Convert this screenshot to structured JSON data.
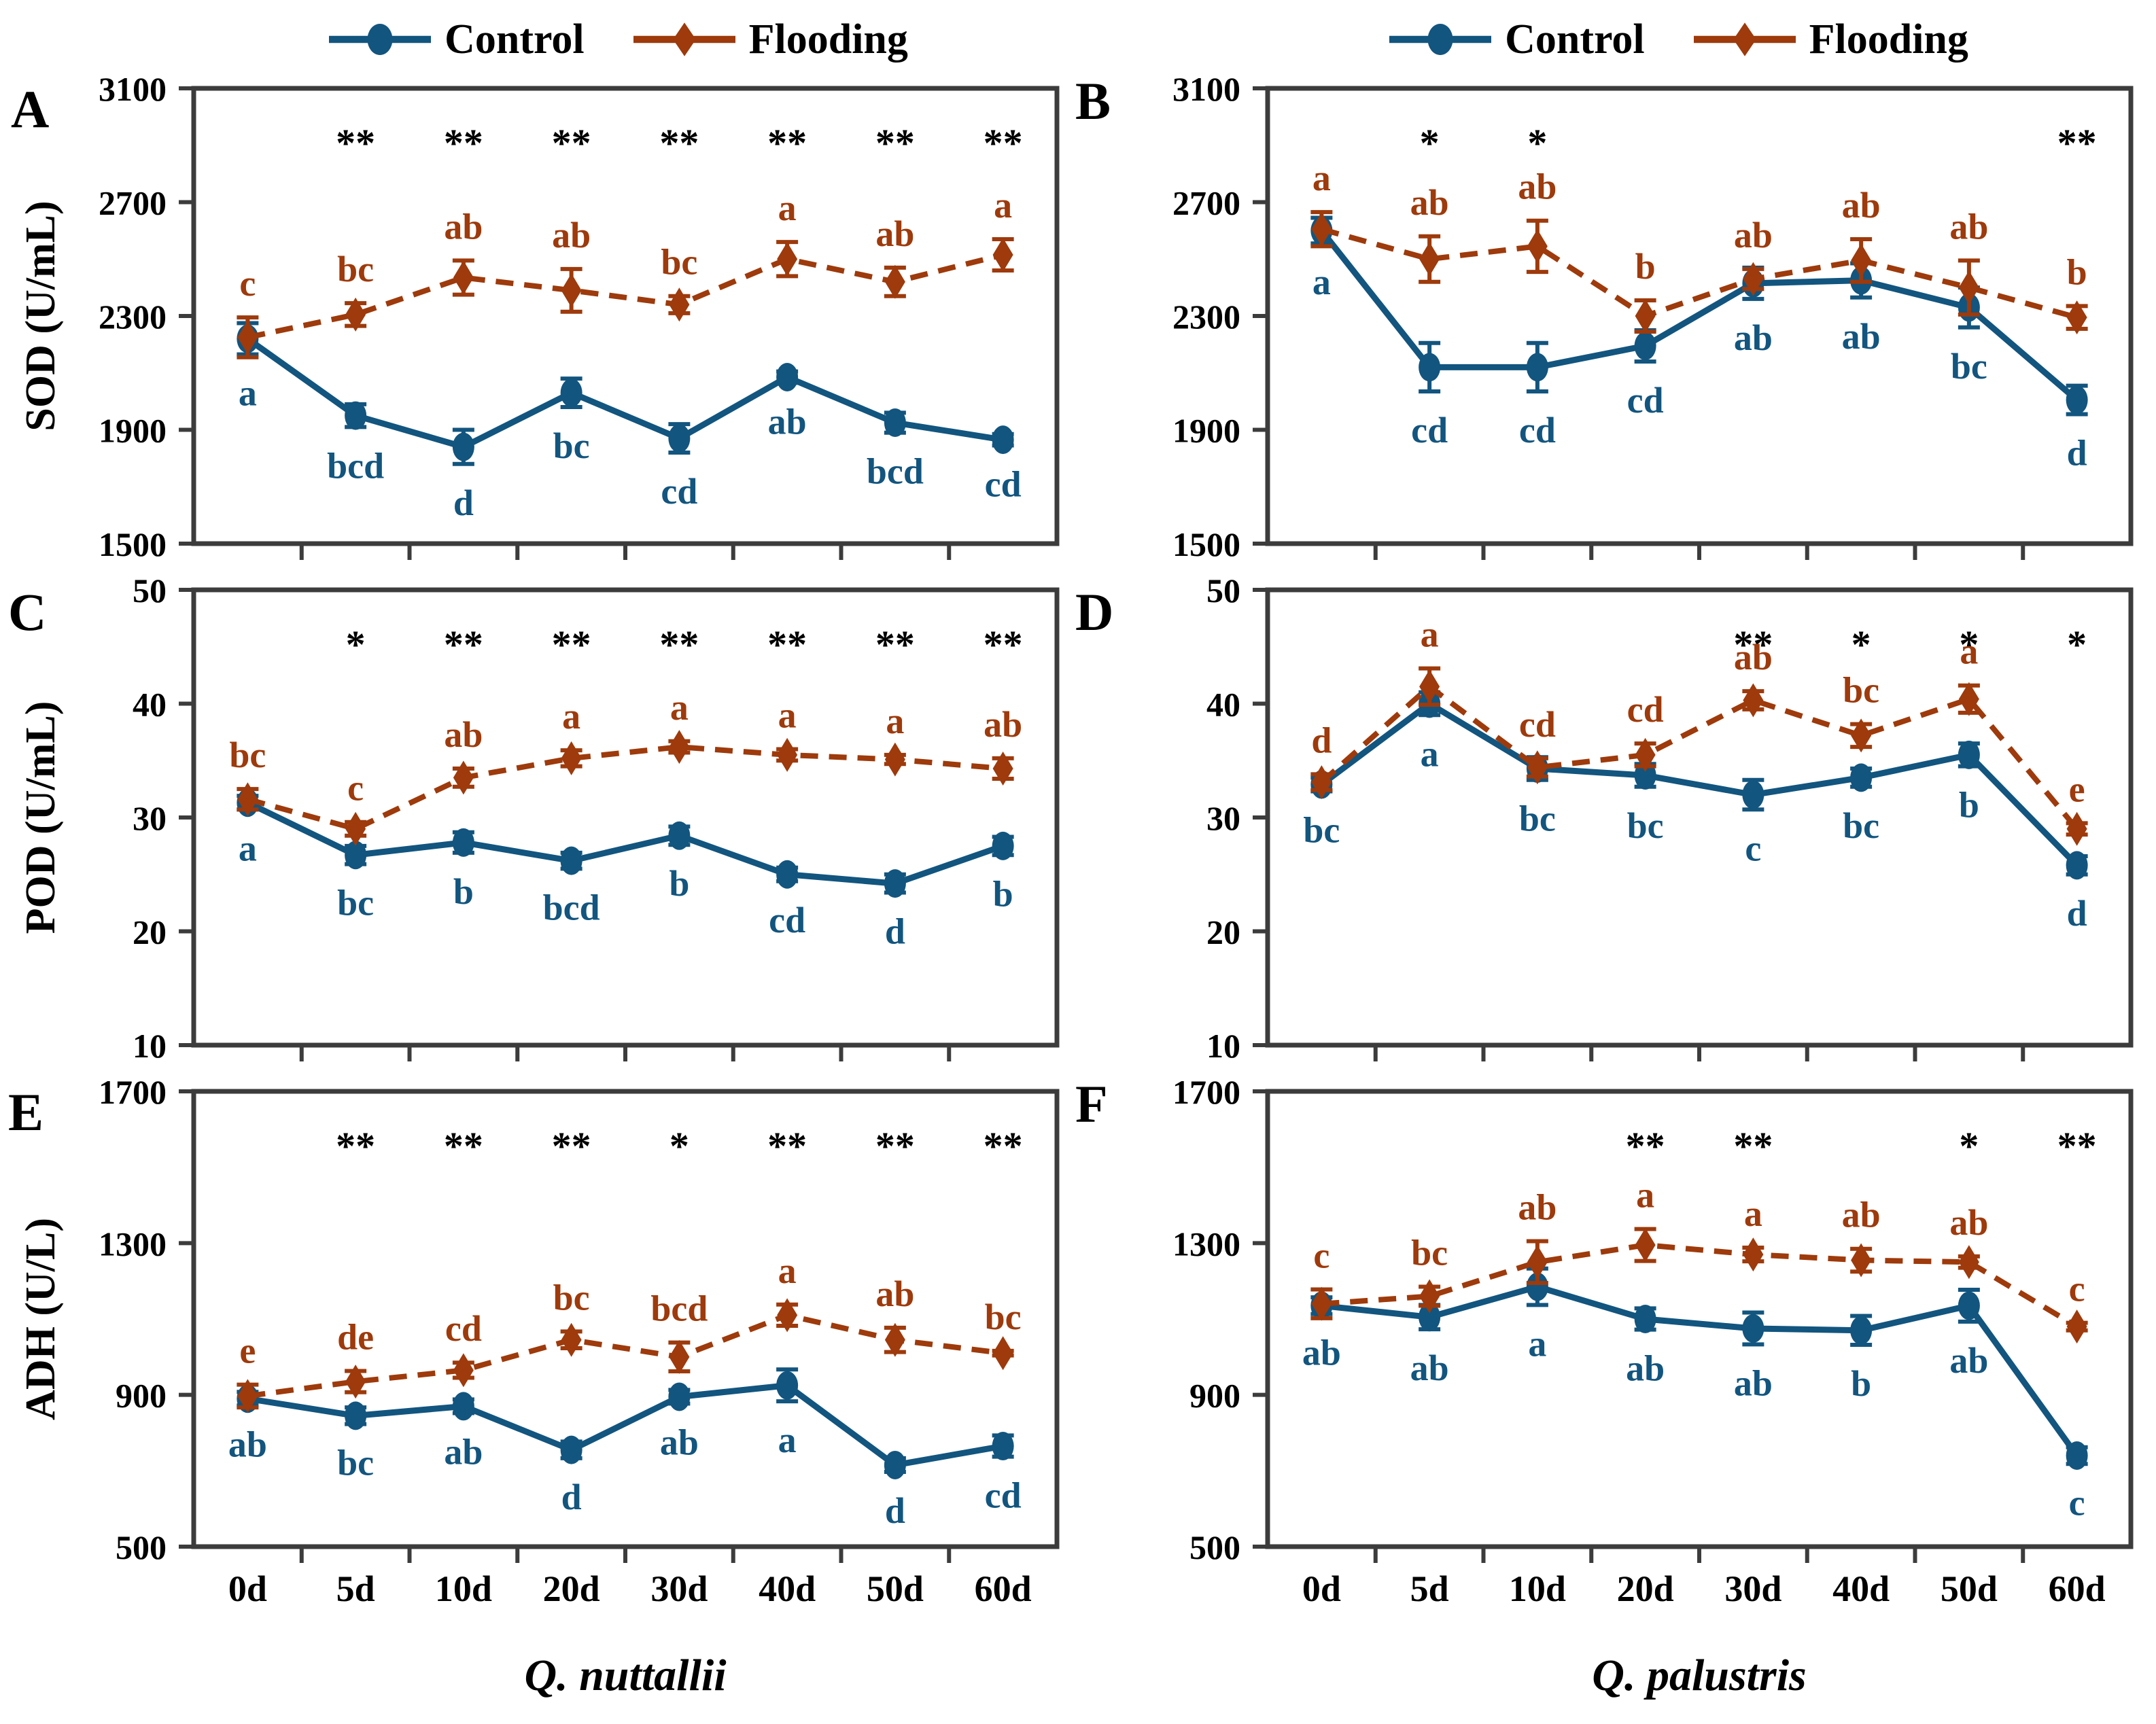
{
  "legend": {
    "control_label": "Control",
    "flooding_label": "Flooding"
  },
  "colors": {
    "control": "#12557f",
    "flooding": "#9e3a0b",
    "axis": "#3c3c3c",
    "significance": "#000000"
  },
  "x_categories": [
    "0d",
    "5d",
    "10d",
    "20d",
    "30d",
    "40d",
    "50d",
    "60d"
  ],
  "species": {
    "left": "Q. nuttallii",
    "right": "Q. palustris"
  },
  "chart_data": [
    {
      "panel_label": "A",
      "type": "line",
      "column": "left",
      "row": 0,
      "ylabel": "SOD (U/mL)",
      "ylim": [
        1500,
        3100
      ],
      "yticks": [
        3100,
        2700,
        2300,
        1900,
        1500
      ],
      "significance": [
        "",
        "**",
        "**",
        "**",
        "**",
        "**",
        "**",
        "**"
      ],
      "series": [
        {
          "name": "Control",
          "values": [
            2220,
            1950,
            1840,
            2030,
            1870,
            2085,
            1925,
            1865
          ],
          "errors": [
            55,
            40,
            60,
            50,
            50,
            20,
            35,
            20
          ],
          "letters": [
            "a",
            "bcd",
            "d",
            "bc",
            "cd",
            "ab",
            "bcd",
            "cd"
          ]
        },
        {
          "name": "Flooding",
          "values": [
            2225,
            2305,
            2435,
            2390,
            2340,
            2500,
            2420,
            2515
          ],
          "errors": [
            70,
            40,
            60,
            75,
            30,
            60,
            50,
            55
          ],
          "letters": [
            "c",
            "bc",
            "ab",
            "ab",
            "bc",
            "a",
            "ab",
            "a"
          ]
        }
      ]
    },
    {
      "panel_label": "B",
      "type": "line",
      "column": "right",
      "row": 0,
      "ylabel": "",
      "ylim": [
        1500,
        3100
      ],
      "yticks": [
        3100,
        2700,
        2300,
        1900,
        1500
      ],
      "significance": [
        "",
        "*",
        "*",
        "",
        "",
        "",
        "",
        "**"
      ],
      "series": [
        {
          "name": "Control",
          "values": [
            2600,
            2120,
            2120,
            2195,
            2415,
            2425,
            2330,
            2005
          ],
          "errors": [
            45,
            85,
            85,
            55,
            55,
            60,
            70,
            50
          ],
          "letters": [
            "a",
            "cd",
            "cd",
            "cd",
            "ab",
            "ab",
            "bc",
            "d"
          ]
        },
        {
          "name": "Flooding",
          "values": [
            2605,
            2500,
            2545,
            2300,
            2430,
            2495,
            2400,
            2295
          ],
          "errors": [
            60,
            80,
            90,
            55,
            35,
            75,
            95,
            40
          ],
          "letters": [
            "a",
            "ab",
            "ab",
            "b",
            "ab",
            "ab",
            "ab",
            "b"
          ]
        }
      ]
    },
    {
      "panel_label": "C",
      "type": "line",
      "column": "left",
      "row": 1,
      "ylabel": "POD (U/mL)",
      "ylim": [
        10,
        50
      ],
      "yticks": [
        50,
        40,
        30,
        20,
        10
      ],
      "significance": [
        "",
        "*",
        "**",
        "**",
        "**",
        "**",
        "**",
        "**"
      ],
      "series": [
        {
          "name": "Control",
          "values": [
            31.3,
            26.7,
            27.8,
            26.2,
            28.4,
            25.0,
            24.2,
            27.5
          ],
          "errors": [
            0.6,
            0.8,
            0.9,
            0.7,
            0.8,
            0.6,
            0.8,
            0.8
          ],
          "letters": [
            "a",
            "bc",
            "b",
            "bcd",
            "b",
            "cd",
            "d",
            "b"
          ]
        },
        {
          "name": "Flooding",
          "values": [
            31.6,
            29.0,
            33.5,
            35.2,
            36.2,
            35.5,
            35.1,
            34.3
          ],
          "errors": [
            0.9,
            0.6,
            0.8,
            0.7,
            0.5,
            0.5,
            0.4,
            0.9
          ],
          "letters": [
            "bc",
            "c",
            "ab",
            "a",
            "a",
            "a",
            "a",
            "ab"
          ]
        }
      ]
    },
    {
      "panel_label": "D",
      "type": "line",
      "column": "right",
      "row": 1,
      "ylabel": "",
      "ylim": [
        10,
        50
      ],
      "yticks": [
        50,
        40,
        30,
        20,
        10
      ],
      "significance": [
        "",
        "",
        "",
        "",
        "**",
        "*",
        "*",
        "*"
      ],
      "series": [
        {
          "name": "Control",
          "values": [
            32.9,
            40.0,
            34.3,
            33.7,
            32.0,
            33.5,
            35.5,
            25.8
          ],
          "errors": [
            0.6,
            1.0,
            1.0,
            1.0,
            1.3,
            0.8,
            1.0,
            0.8
          ],
          "letters": [
            "bc",
            "a",
            "bc",
            "bc",
            "c",
            "bc",
            "b",
            "d"
          ]
        },
        {
          "name": "Flooding",
          "values": [
            33.1,
            41.5,
            34.4,
            35.5,
            40.3,
            37.2,
            40.4,
            29.0
          ],
          "errors": [
            0.7,
            1.6,
            0.8,
            1.0,
            0.8,
            1.0,
            1.2,
            0.5
          ],
          "letters": [
            "d",
            "a",
            "cd",
            "cd",
            "ab",
            "bc",
            "a",
            "e"
          ]
        }
      ]
    },
    {
      "panel_label": "E",
      "type": "line",
      "column": "left",
      "row": 2,
      "ylabel": "ADH (U/L)",
      "ylim": [
        500,
        1700
      ],
      "yticks": [
        1700,
        1300,
        900,
        500
      ],
      "significance": [
        "",
        "**",
        "**",
        "**",
        "*",
        "**",
        "**",
        "**"
      ],
      "series": [
        {
          "name": "Control",
          "values": [
            890,
            845,
            870,
            755,
            895,
            925,
            715,
            765
          ],
          "errors": [
            18,
            22,
            18,
            22,
            18,
            42,
            18,
            28
          ],
          "letters": [
            "ab",
            "bc",
            "ab",
            "d",
            "ab",
            "a",
            "d",
            "cd"
          ]
        },
        {
          "name": "Flooding",
          "values": [
            897,
            935,
            965,
            1045,
            1000,
            1110,
            1045,
            1010
          ],
          "errors": [
            30,
            28,
            20,
            22,
            38,
            28,
            32,
            6
          ],
          "letters": [
            "e",
            "de",
            "cd",
            "bc",
            "bcd",
            "a",
            "ab",
            "bc"
          ]
        }
      ]
    },
    {
      "panel_label": "F",
      "type": "line",
      "column": "right",
      "row": 2,
      "ylabel": "",
      "ylim": [
        500,
        1700
      ],
      "yticks": [
        1700,
        1300,
        900,
        500
      ],
      "significance": [
        "",
        "",
        "",
        "**",
        "**",
        "",
        "*",
        "**"
      ],
      "series": [
        {
          "name": "Control",
          "values": [
            1135,
            1105,
            1185,
            1100,
            1075,
            1070,
            1135,
            740
          ],
          "errors": [
            22,
            32,
            48,
            28,
            42,
            38,
            42,
            22
          ],
          "letters": [
            "ab",
            "ab",
            "a",
            "ab",
            "ab",
            "b",
            "ab",
            "c"
          ]
        },
        {
          "name": "Flooding",
          "values": [
            1140,
            1160,
            1250,
            1295,
            1270,
            1255,
            1250,
            1080
          ],
          "errors": [
            38,
            25,
            55,
            42,
            18,
            30,
            15,
            10
          ],
          "letters": [
            "c",
            "bc",
            "ab",
            "a",
            "a",
            "ab",
            "ab",
            "c"
          ]
        }
      ]
    }
  ]
}
